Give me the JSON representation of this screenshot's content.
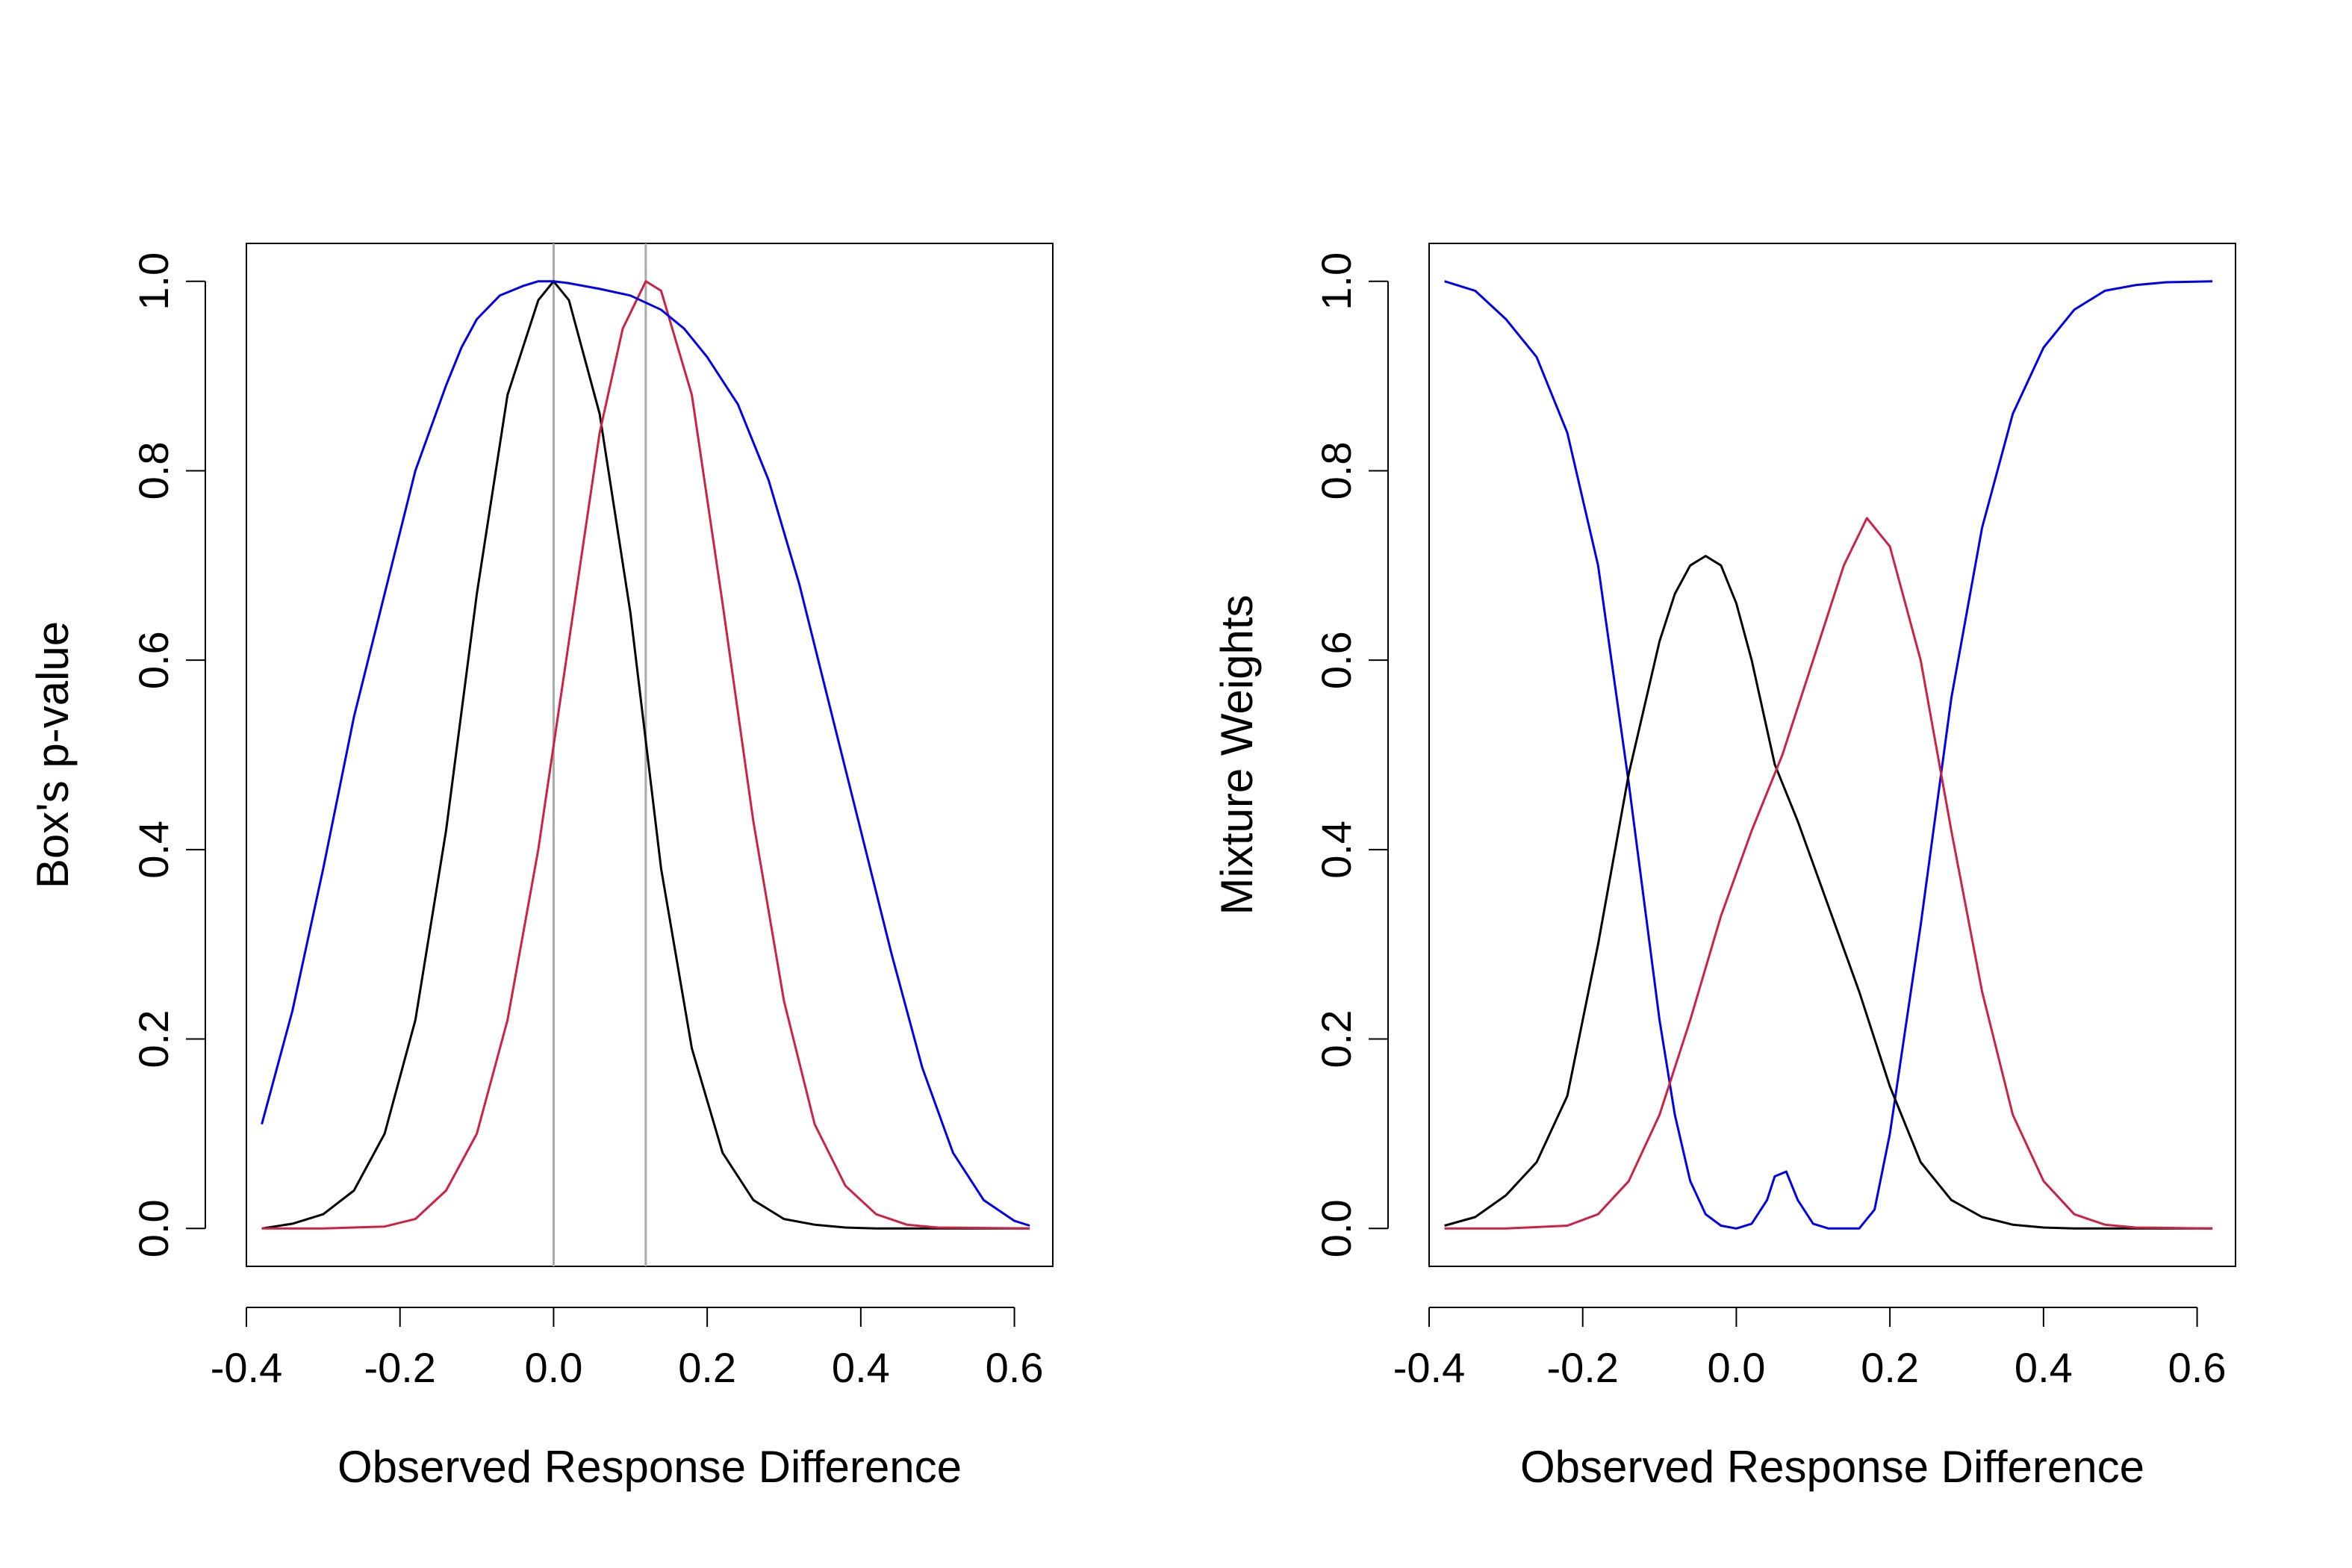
{
  "chart_data": [
    {
      "type": "line",
      "xlabel": "Observed Response Difference",
      "ylabel": "Box's p-value",
      "xlim": [
        -0.4,
        0.65
      ],
      "ylim": [
        -0.04,
        1.04
      ],
      "x_ticks": [
        "-0.4",
        "-0.2",
        "0.0",
        "0.2",
        "0.4",
        "0.6"
      ],
      "y_ticks": [
        "0.0",
        "0.2",
        "0.4",
        "0.6",
        "0.8",
        "1.0"
      ],
      "reference_lines_x": [
        0.0,
        0.12
      ],
      "series": [
        {
          "name": "black",
          "color": "#000000",
          "x": [
            -0.38,
            -0.34,
            -0.3,
            -0.26,
            -0.22,
            -0.18,
            -0.14,
            -0.1,
            -0.06,
            -0.02,
            0.0,
            0.02,
            0.06,
            0.1,
            0.14,
            0.18,
            0.22,
            0.26,
            0.3,
            0.34,
            0.38,
            0.42,
            0.5,
            0.62
          ],
          "y": [
            0.0,
            0.005,
            0.015,
            0.04,
            0.1,
            0.22,
            0.42,
            0.67,
            0.88,
            0.98,
            1.0,
            0.98,
            0.86,
            0.65,
            0.38,
            0.19,
            0.08,
            0.03,
            0.01,
            0.004,
            0.001,
            0.0,
            0.0,
            0.0
          ]
        },
        {
          "name": "red",
          "color": "#cc2244",
          "x": [
            -0.38,
            -0.3,
            -0.22,
            -0.18,
            -0.14,
            -0.1,
            -0.06,
            -0.02,
            0.02,
            0.06,
            0.09,
            0.12,
            0.14,
            0.18,
            0.22,
            0.26,
            0.3,
            0.34,
            0.38,
            0.42,
            0.46,
            0.5,
            0.62
          ],
          "y": [
            0.0,
            0.0,
            0.002,
            0.01,
            0.04,
            0.1,
            0.22,
            0.4,
            0.62,
            0.84,
            0.95,
            1.0,
            0.99,
            0.88,
            0.66,
            0.43,
            0.24,
            0.11,
            0.045,
            0.015,
            0.004,
            0.001,
            0.0
          ]
        },
        {
          "name": "blue",
          "color": "#0000ee",
          "x": [
            -0.38,
            -0.34,
            -0.3,
            -0.26,
            -0.22,
            -0.18,
            -0.14,
            -0.12,
            -0.1,
            -0.07,
            -0.04,
            -0.02,
            0.0,
            0.02,
            0.06,
            0.1,
            0.14,
            0.17,
            0.2,
            0.24,
            0.28,
            0.32,
            0.36,
            0.4,
            0.44,
            0.48,
            0.52,
            0.56,
            0.6,
            0.62
          ],
          "y": [
            0.11,
            0.23,
            0.38,
            0.54,
            0.67,
            0.8,
            0.89,
            0.93,
            0.96,
            0.985,
            0.995,
            1.0,
            1.0,
            0.998,
            0.992,
            0.985,
            0.97,
            0.95,
            0.92,
            0.87,
            0.79,
            0.68,
            0.55,
            0.42,
            0.29,
            0.17,
            0.08,
            0.03,
            0.008,
            0.003
          ]
        }
      ]
    },
    {
      "type": "line",
      "xlabel": "Observed Response Difference",
      "ylabel": "Mixture Weights",
      "xlim": [
        -0.4,
        0.65
      ],
      "ylim": [
        -0.04,
        1.04
      ],
      "x_ticks": [
        "-0.4",
        "-0.2",
        "0.0",
        "0.2",
        "0.4",
        "0.6"
      ],
      "y_ticks": [
        "0.0",
        "0.2",
        "0.4",
        "0.6",
        "0.8",
        "1.0"
      ],
      "series": [
        {
          "name": "blue",
          "color": "#0000ee",
          "x": [
            -0.38,
            -0.34,
            -0.3,
            -0.26,
            -0.22,
            -0.18,
            -0.14,
            -0.1,
            -0.08,
            -0.06,
            -0.04,
            -0.02,
            0.0,
            0.02,
            0.04,
            0.05,
            0.065,
            0.08,
            0.1,
            0.12,
            0.14,
            0.16,
            0.18,
            0.2,
            0.24,
            0.28,
            0.32,
            0.36,
            0.4,
            0.44,
            0.48,
            0.52,
            0.56,
            0.62
          ],
          "y": [
            1.0,
            0.99,
            0.96,
            0.92,
            0.84,
            0.7,
            0.47,
            0.22,
            0.12,
            0.05,
            0.015,
            0.003,
            0.0,
            0.005,
            0.03,
            0.055,
            0.06,
            0.03,
            0.005,
            0.0,
            0.0,
            0.0,
            0.02,
            0.1,
            0.32,
            0.56,
            0.74,
            0.86,
            0.93,
            0.97,
            0.99,
            0.996,
            0.999,
            1.0
          ]
        },
        {
          "name": "black",
          "color": "#000000",
          "x": [
            -0.38,
            -0.34,
            -0.3,
            -0.26,
            -0.22,
            -0.18,
            -0.14,
            -0.1,
            -0.08,
            -0.06,
            -0.04,
            -0.02,
            0.0,
            0.02,
            0.05,
            0.08,
            0.12,
            0.16,
            0.2,
            0.24,
            0.28,
            0.32,
            0.36,
            0.4,
            0.44,
            0.5,
            0.62
          ],
          "y": [
            0.003,
            0.012,
            0.035,
            0.07,
            0.14,
            0.3,
            0.48,
            0.62,
            0.67,
            0.7,
            0.71,
            0.7,
            0.66,
            0.6,
            0.49,
            0.43,
            0.34,
            0.25,
            0.15,
            0.07,
            0.03,
            0.012,
            0.004,
            0.001,
            0.0,
            0.0,
            0.0
          ]
        },
        {
          "name": "red",
          "color": "#cc2244",
          "x": [
            -0.38,
            -0.3,
            -0.22,
            -0.18,
            -0.14,
            -0.1,
            -0.06,
            -0.02,
            0.02,
            0.06,
            0.1,
            0.14,
            0.17,
            0.2,
            0.24,
            0.28,
            0.32,
            0.36,
            0.4,
            0.44,
            0.48,
            0.52,
            0.62
          ],
          "y": [
            0.0,
            0.0,
            0.003,
            0.015,
            0.05,
            0.12,
            0.22,
            0.33,
            0.42,
            0.5,
            0.6,
            0.7,
            0.75,
            0.72,
            0.6,
            0.42,
            0.25,
            0.12,
            0.05,
            0.015,
            0.004,
            0.001,
            0.0
          ]
        }
      ]
    }
  ]
}
